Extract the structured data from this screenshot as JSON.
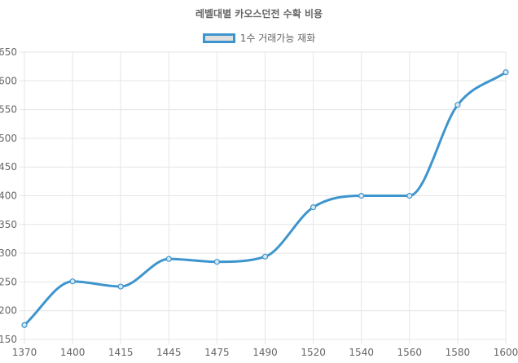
{
  "chart_data": {
    "type": "line",
    "title": "레벨대별 카오스던전 수확 비용",
    "categories": [
      "1370",
      "1400",
      "1415",
      "1445",
      "1475",
      "1490",
      "1520",
      "1540",
      "1560",
      "1580",
      "1600"
    ],
    "series": [
      {
        "name": "1수 거래가능 재화",
        "values": [
          175,
          251,
          242,
          290,
          285,
          294,
          380,
          400,
          400,
          558,
          615
        ]
      }
    ],
    "ylim": [
      150,
      650
    ],
    "yticks": [
      150,
      200,
      250,
      300,
      350,
      400,
      450,
      500,
      550,
      600,
      650
    ],
    "grid": true,
    "legend_position": "top",
    "colors": {
      "line": "#3e95cd",
      "point_fill": "#dbe7f0",
      "legend_fill": "#e0e0e0",
      "grid": "#e5e5e5",
      "text": "#666666"
    }
  }
}
